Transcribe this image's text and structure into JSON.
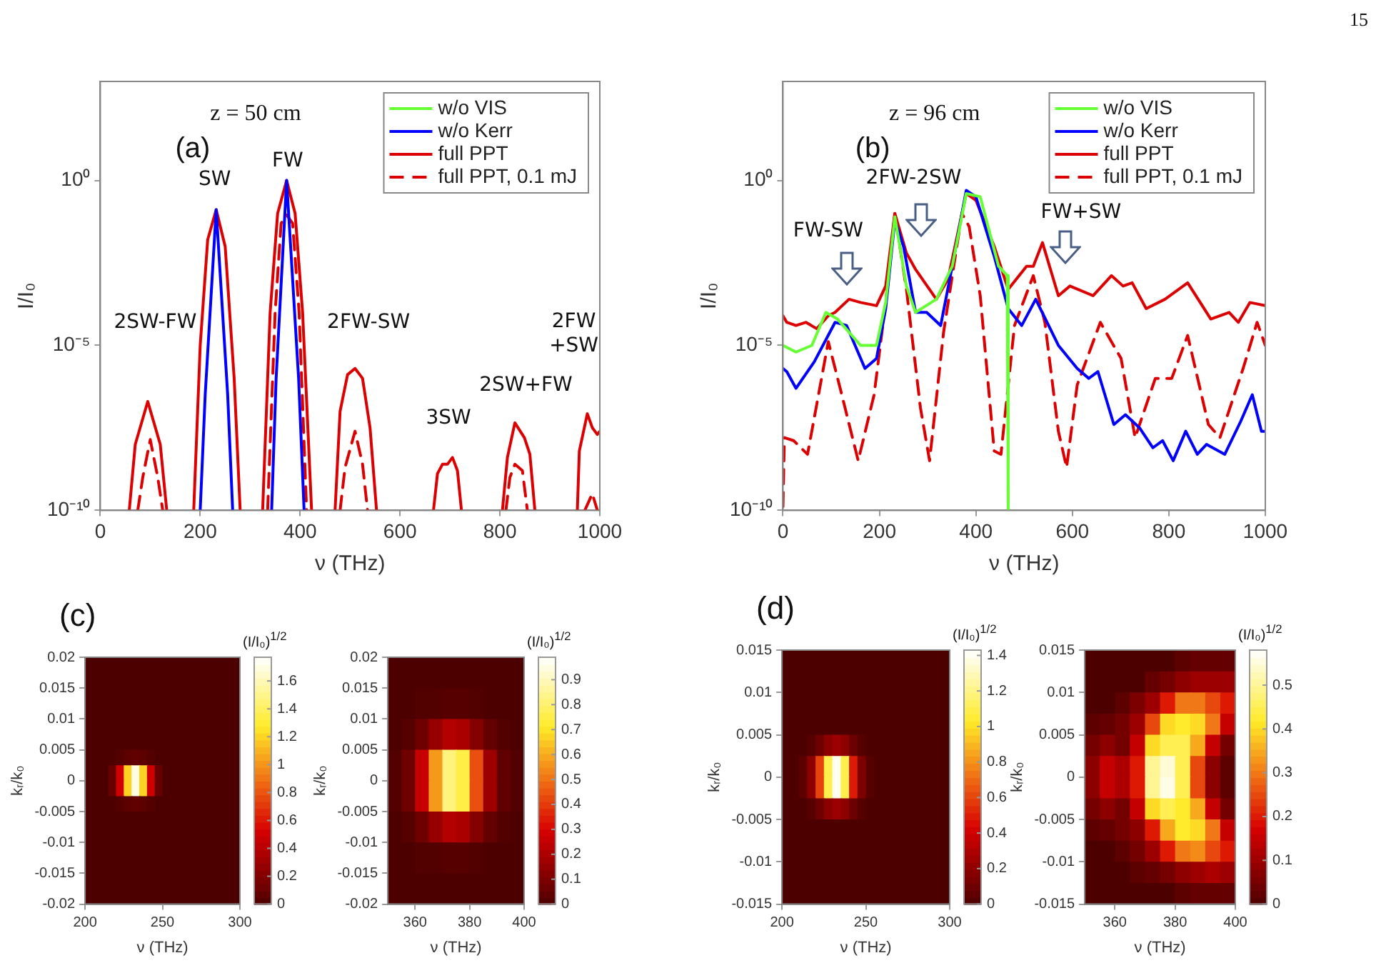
{
  "chart_data": [
    {
      "type": "line",
      "xlabel": "ν (THz)",
      "ylabel": "I/I₀",
      "log": "y",
      "xlim": [
        0,
        1000
      ],
      "xticks": [
        0,
        200,
        400,
        600,
        800,
        1000
      ],
      "ylim": [
        1e-10,
        1000
      ],
      "yticks": [
        {
          "value": 1e-10,
          "label": "10⁻¹⁰"
        },
        {
          "value": 1e-05,
          "label": "10⁻⁵"
        },
        {
          "value": 1,
          "label": "10⁰"
        }
      ],
      "legend": "top right",
      "annotations": [
        "(a)",
        "z = 50 cm",
        "15",
        "SW",
        "FW",
        "2SW-FW",
        "2FW-SW",
        "3SW",
        "2SW+FW",
        "2FW\n+SW"
      ],
      "series": [
        {
          "name": "w/o VIS",
          "color": "#66ff33"
        },
        {
          "name": "w/o Kerr",
          "color": "#0000ff",
          "x": [
            200,
            210,
            232,
            255,
            265,
            300,
            343,
            352,
            373,
            397,
            408
          ],
          "values": [
            1e-10,
            3.2e-07,
            0.13,
            3.2e-07,
            1e-10,
            null,
            1e-10,
            1e-06,
            1,
            1e-06,
            1e-10
          ]
        },
        {
          "name": "full PPT",
          "color": "#dd0000",
          "x": [
            58,
            70,
            95,
            120,
            133,
            160,
            187,
            200,
            215,
            232,
            250,
            268,
            280,
            300,
            325,
            340,
            355,
            373,
            390,
            405,
            423,
            445,
            470,
            480,
            495,
            510,
            525,
            540,
            553,
            600,
            667,
            675,
            685,
            695,
            705,
            715,
            723,
            770,
            805,
            815,
            830,
            849,
            860,
            870,
            900,
            955,
            959,
            975,
            985,
            995,
            1000
          ],
          "values": [
            1e-10,
            1e-08,
            2e-07,
            1e-08,
            1e-10,
            null,
            1e-10,
            1e-05,
            0.016,
            0.13,
            0.01,
            1e-06,
            1e-10,
            null,
            1e-10,
            0.0001,
            0.1,
            1,
            0.1,
            0.0001,
            1e-10,
            null,
            1e-10,
            1e-07,
            1.3e-06,
            2e-06,
            1e-06,
            3.2e-08,
            1e-10,
            null,
            1e-10,
            1.3e-09,
            2.5e-09,
            2.5e-09,
            4e-09,
            1.6e-09,
            1e-10,
            null,
            1e-10,
            4e-09,
            4.5e-08,
            1.6e-08,
            5e-09,
            1e-10,
            null,
            1e-10,
            6.3e-09,
            8.5e-08,
            3.2e-08,
            2e-08,
            2.5e-08
          ]
        },
        {
          "name": "full PPT, 0.1 mJ",
          "color": "#dd0000",
          "line_style": "dashed",
          "x": [
            75,
            85,
            100,
            115,
            125,
            160,
            335,
            350,
            362,
            373,
            385,
            398,
            413,
            445,
            480,
            490,
            510,
            525,
            535,
            600,
            812,
            820,
            830,
            845,
            855,
            900,
            970,
            985,
            995
          ],
          "values": [
            1e-10,
            1e-09,
            1.4e-08,
            1e-09,
            1e-10,
            null,
            1e-10,
            0.0001,
            0.05,
            0.09,
            0.05,
            0.0001,
            1e-10,
            null,
            1e-10,
            2e-09,
            2.5e-08,
            2.5e-09,
            1e-10,
            null,
            1e-10,
            1e-09,
            2.5e-09,
            1.6e-09,
            1e-10,
            null,
            1e-10,
            3.2e-10,
            1e-10
          ]
        }
      ]
    },
    {
      "type": "line",
      "xlabel": "ν (THz)",
      "ylabel": "I/I₀",
      "log": "y",
      "xlim": [
        0,
        1000
      ],
      "xticks": [
        0,
        200,
        400,
        600,
        800,
        1000
      ],
      "ylim": [
        1e-10,
        1000
      ],
      "yticks": [
        {
          "value": 1e-10,
          "label": "10⁻¹⁰"
        },
        {
          "value": 1e-05,
          "label": "10⁻⁵"
        },
        {
          "value": 1,
          "label": "10⁰"
        }
      ],
      "legend": "top right",
      "annotations": [
        "(b)",
        "z = 96 cm",
        "FW-SW",
        "2FW-2SW",
        "FW+SW"
      ],
      "series": [
        {
          "name": "w/o VIS",
          "color": "#66ff33",
          "x": [
            0,
            27,
            60,
            89,
            113,
            161,
            194,
            213,
            232,
            256,
            275,
            318,
            351,
            380,
            409,
            447,
            465,
            467
          ],
          "values": [
            1e-05,
            6.3e-06,
            1e-05,
            0.0001,
            6.3e-05,
            1e-05,
            1e-05,
            0.0002,
            0.079,
            0.00063,
            0.0001,
            0.00025,
            0.0025,
            0.4,
            0.32,
            0.0025,
            0.0013,
            1e-10
          ]
        },
        {
          "name": "w/o Kerr",
          "color": "#0000ff",
          "x": [
            0,
            8,
            27,
            65,
            108,
            132,
            170,
            194,
            213,
            232,
            250,
            275,
            298,
            327,
            351,
            380,
            400,
            438,
            467,
            495,
            524,
            571,
            610,
            634,
            653,
            686,
            710,
            739,
            767,
            787,
            809,
            835,
            859,
            878,
            916,
            949,
            973,
            992,
            1000
          ],
          "values": [
            2e-06,
            1.6e-06,
            5e-07,
            3.2e-06,
            5e-05,
            4e-05,
            2e-06,
            4e-06,
            0.00013,
            0.063,
            0.01,
            0.0001,
            0.0001,
            4e-05,
            0.0025,
            0.5,
            0.32,
            0.005,
            0.00013,
            4e-05,
            0.00025,
            1e-05,
            2e-06,
            1e-06,
            1.6e-06,
            4e-08,
            7.9e-08,
            3.2e-08,
            7.9e-09,
            1.3e-08,
            3.2e-09,
            2.5e-08,
            5e-09,
            1e-08,
            5e-09,
            5e-08,
            3.2e-07,
            2.5e-08,
            2.5e-08
          ]
        },
        {
          "name": "full PPT",
          "color": "#dd0000",
          "x": [
            0,
            8,
            27,
            48,
            70,
            94,
            108,
            137,
            161,
            194,
            213,
            232,
            256,
            275,
            318,
            342,
            380,
            400,
            438,
            467,
            505,
            519,
            538,
            571,
            595,
            643,
            681,
            705,
            724,
            753,
            792,
            839,
            887,
            925,
            944,
            968,
            1000
          ],
          "values": [
            7.9e-05,
            5e-05,
            4e-05,
            5e-05,
            3.2e-05,
            7.9e-05,
            0.0001,
            0.00025,
            0.0002,
            0.00016,
            0.00063,
            0.1,
            0.0063,
            0.002,
            0.00025,
            0.001,
            0.4,
            0.25,
            0.01,
            0.0005,
            0.0025,
            0.0025,
            0.013,
            0.00032,
            0.00063,
            0.00032,
            0.0013,
            0.00063,
            0.00079,
            0.00013,
            0.00025,
            0.00079,
            6.3e-05,
            0.0001,
            5e-05,
            0.0002,
            0.00016
          ]
        },
        {
          "name": "full PPT, 0.1 mJ",
          "color": "#dd0000",
          "line_style": "dashed",
          "x": [
            0,
            3,
            22,
            51,
            94,
            122,
            156,
            189,
            213,
            232,
            256,
            285,
            304,
            333,
            371,
            386,
            409,
            438,
            452,
            480,
            519,
            543,
            571,
            588,
            610,
            658,
            701,
            730,
            772,
            806,
            839,
            882,
            906,
            954,
            983,
            1000
          ],
          "values": [
            1.3e-10,
            1.6e-08,
            1.3e-08,
            5e-09,
            1.3e-05,
            3.2e-07,
            3.2e-09,
            3.2e-07,
            0.0002,
            0.1,
            0.0005,
            1.3e-07,
            3.2e-09,
            2.5e-05,
            0.1,
            0.04,
            0.00032,
            6.3e-09,
            5e-09,
            4e-05,
            0.0013,
            5e-05,
            2.5e-08,
            2e-09,
            6.3e-07,
            5e-05,
            4e-06,
            1.6e-08,
            1e-06,
            1e-06,
            2e-05,
            4e-08,
            1.6e-08,
            2e-06,
            5e-05,
            1e-05
          ]
        }
      ]
    },
    {
      "type": "heatmap",
      "annotations": [
        "(c)"
      ],
      "xlabel": "ν (THz)",
      "ylabel": "kᵣ/k₀",
      "clabel": "(I/I₀)$^{1/2}$",
      "xlim": [
        200,
        300
      ],
      "xticks": [
        200,
        250,
        300
      ],
      "ylim": [
        -0.02,
        0.02
      ],
      "yticks": [
        -0.02,
        -0.015,
        -0.01,
        -0.005,
        0,
        0.005,
        0.01,
        0.015,
        0.02
      ],
      "clim": [
        0,
        1.77
      ],
      "cticks": [
        0,
        0.2,
        0.4,
        0.6,
        0.8,
        1,
        1.2,
        1.4,
        1.6
      ],
      "x": [
        202.5,
        207.5,
        212.5,
        217.5,
        222.5,
        227.5,
        232.5,
        237.5,
        242.5,
        247.5,
        252.5,
        257.5,
        262.5,
        267.5,
        272.5,
        277.5,
        282.5,
        287.5,
        292.5,
        297.5
      ],
      "y": [
        0.01875,
        0.01625,
        0.01375,
        0.01125,
        0.00875,
        0.00625,
        0.00375,
        0.00125,
        -0.00125,
        -0.00375,
        -0.00625,
        -0.00875,
        -0.01125,
        -0.01375,
        -0.01625,
        -0.01875
      ],
      "cells": [
        [
          0,
          0,
          0,
          0,
          0,
          0,
          0,
          0,
          0,
          0,
          0,
          0,
          0,
          0,
          0,
          0,
          0,
          0,
          0,
          0
        ],
        [
          0,
          0,
          0,
          0,
          0,
          0,
          0,
          0,
          0,
          0,
          0,
          0,
          0,
          0,
          0,
          0,
          0,
          0,
          0,
          0
        ],
        [
          0,
          0,
          0,
          0,
          0,
          0,
          0,
          0,
          0,
          0,
          0,
          0,
          0,
          0,
          0,
          0,
          0,
          0,
          0,
          0
        ],
        [
          0,
          0,
          0,
          0,
          0,
          0,
          0,
          0,
          0,
          0,
          0,
          0,
          0,
          0,
          0,
          0,
          0,
          0,
          0,
          0
        ],
        [
          0,
          0,
          0,
          0,
          0,
          0,
          0,
          0,
          0,
          0,
          0,
          0,
          0,
          0,
          0,
          0,
          0,
          0,
          0,
          0
        ],
        [
          0,
          0,
          0,
          0,
          0,
          0,
          0,
          0,
          0,
          0,
          0,
          0,
          0,
          0,
          0,
          0,
          0,
          0,
          0,
          0
        ],
        [
          0,
          0,
          0,
          0,
          0.03,
          0.06,
          0.08,
          0.06,
          0.03,
          0,
          0,
          0,
          0,
          0,
          0,
          0,
          0,
          0,
          0,
          0
        ],
        [
          0,
          0,
          0,
          0.1,
          0.5,
          1.2,
          1.7,
          1.2,
          0.5,
          0.1,
          0,
          0,
          0,
          0,
          0,
          0,
          0,
          0,
          0,
          0
        ],
        [
          0,
          0,
          0,
          0.1,
          0.5,
          1.2,
          1.7,
          1.2,
          0.5,
          0.1,
          0,
          0,
          0,
          0,
          0,
          0,
          0,
          0,
          0,
          0
        ],
        [
          0,
          0,
          0,
          0,
          0.03,
          0.06,
          0.08,
          0.06,
          0.03,
          0,
          0,
          0,
          0,
          0,
          0,
          0,
          0,
          0,
          0,
          0
        ],
        [
          0,
          0,
          0,
          0,
          0,
          0,
          0,
          0,
          0,
          0,
          0,
          0,
          0,
          0,
          0,
          0,
          0,
          0,
          0,
          0
        ],
        [
          0,
          0,
          0,
          0,
          0,
          0,
          0,
          0,
          0,
          0,
          0,
          0,
          0,
          0,
          0,
          0,
          0,
          0,
          0,
          0
        ],
        [
          0,
          0,
          0,
          0,
          0,
          0,
          0,
          0,
          0,
          0,
          0,
          0,
          0,
          0,
          0,
          0,
          0,
          0,
          0,
          0
        ],
        [
          0,
          0,
          0,
          0,
          0,
          0,
          0,
          0,
          0,
          0,
          0,
          0,
          0,
          0,
          0,
          0,
          0,
          0,
          0,
          0
        ],
        [
          0,
          0,
          0,
          0,
          0,
          0,
          0,
          0,
          0,
          0,
          0,
          0,
          0,
          0,
          0,
          0,
          0,
          0,
          0,
          0
        ],
        [
          0,
          0,
          0,
          0,
          0,
          0,
          0,
          0,
          0,
          0,
          0,
          0,
          0,
          0,
          0,
          0,
          0,
          0,
          0,
          0
        ]
      ]
    },
    {
      "type": "heatmap",
      "xlabel": "ν (THz)",
      "ylabel": "kᵣ/k₀",
      "clabel": "(I/I₀)$^{1/2}$",
      "xlim": [
        350,
        400
      ],
      "xticks": [
        360,
        380,
        400
      ],
      "ylim": [
        -0.02,
        0.02
      ],
      "yticks": [
        -0.02,
        -0.015,
        -0.01,
        -0.005,
        0,
        0.005,
        0.01,
        0.015,
        0.02
      ],
      "clim": [
        0,
        0.99
      ],
      "cticks": [
        0,
        0.1,
        0.2,
        0.3,
        0.4,
        0.5,
        0.6,
        0.7,
        0.8,
        0.9
      ],
      "x": [
        352.5,
        357.5,
        362.5,
        367.5,
        372.5,
        377.5,
        382.5,
        387.5,
        392.5,
        397.5
      ],
      "y": [
        0.0175,
        0.0125,
        0.0075,
        0.0025,
        -0.0025,
        -0.0075,
        -0.0125,
        -0.0175
      ],
      "cells": [
        [
          0,
          0,
          0,
          0,
          0,
          0,
          0,
          0,
          0,
          0
        ],
        [
          0,
          0,
          0.01,
          0.01,
          0.02,
          0.02,
          0.01,
          0,
          0,
          0
        ],
        [
          0,
          0.02,
          0.07,
          0.16,
          0.22,
          0.2,
          0.12,
          0.05,
          0.01,
          0
        ],
        [
          0.01,
          0.07,
          0.26,
          0.57,
          0.82,
          0.75,
          0.44,
          0.17,
          0.04,
          0.01
        ],
        [
          0.01,
          0.07,
          0.26,
          0.57,
          0.82,
          0.75,
          0.44,
          0.17,
          0.04,
          0.01
        ],
        [
          0,
          0.02,
          0.07,
          0.16,
          0.22,
          0.2,
          0.12,
          0.05,
          0.01,
          0
        ],
        [
          0,
          0,
          0.01,
          0.01,
          0.02,
          0.02,
          0.01,
          0,
          0,
          0
        ],
        [
          0,
          0,
          0,
          0,
          0,
          0,
          0,
          0,
          0,
          0
        ]
      ]
    },
    {
      "type": "heatmap",
      "annotations": [
        "(d)"
      ],
      "xlabel": "ν (THz)",
      "ylabel": "kᵣ/k₀",
      "clabel": "(I/I₀)$^{1/2}$",
      "xlim": [
        200,
        300
      ],
      "xticks": [
        200,
        250,
        300
      ],
      "ylim": [
        -0.015,
        0.015
      ],
      "yticks": [
        -0.015,
        -0.01,
        -0.005,
        0,
        0.005,
        0.01,
        0.015
      ],
      "clim": [
        0,
        1.43
      ],
      "cticks": [
        0,
        0.2,
        0.4,
        0.6,
        0.8,
        1,
        1.2,
        1.4
      ],
      "x": [
        202.5,
        207.5,
        212.5,
        217.5,
        222.5,
        227.5,
        232.5,
        237.5,
        242.5,
        247.5,
        252.5,
        257.5,
        262.5,
        267.5,
        272.5,
        277.5,
        282.5,
        287.5,
        292.5,
        297.5
      ],
      "y": [
        0.01375,
        0.01125,
        0.00875,
        0.00625,
        0.00375,
        0.00125,
        -0.00125,
        -0.00375,
        -0.00625,
        -0.00875,
        -0.01125,
        -0.01375
      ],
      "cells": [
        [
          0,
          0,
          0,
          0,
          0,
          0,
          0,
          0,
          0,
          0,
          0,
          0,
          0,
          0,
          0,
          0,
          0,
          0,
          0,
          0
        ],
        [
          0,
          0,
          0,
          0,
          0,
          0,
          0,
          0,
          0,
          0,
          0,
          0,
          0,
          0,
          0,
          0,
          0,
          0,
          0,
          0
        ],
        [
          0,
          0,
          0,
          0,
          0,
          0,
          0,
          0,
          0,
          0,
          0,
          0,
          0,
          0,
          0,
          0,
          0,
          0,
          0,
          0
        ],
        [
          0,
          0,
          0,
          0,
          0,
          0,
          0,
          0,
          0,
          0,
          0,
          0,
          0,
          0,
          0,
          0,
          0,
          0,
          0,
          0
        ],
        [
          0,
          0,
          0,
          0.03,
          0.1,
          0.2,
          0.25,
          0.2,
          0.1,
          0.03,
          0,
          0,
          0,
          0,
          0,
          0,
          0,
          0,
          0,
          0
        ],
        [
          0,
          0,
          0.05,
          0.2,
          0.6,
          1.1,
          1.4,
          1.1,
          0.5,
          0.15,
          0.03,
          0,
          0,
          0,
          0,
          0,
          0,
          0,
          0,
          0
        ],
        [
          0,
          0,
          0.05,
          0.2,
          0.6,
          1.1,
          1.4,
          1.1,
          0.5,
          0.15,
          0.03,
          0,
          0,
          0,
          0,
          0,
          0,
          0,
          0,
          0
        ],
        [
          0,
          0,
          0,
          0.03,
          0.1,
          0.2,
          0.25,
          0.2,
          0.1,
          0.03,
          0,
          0,
          0,
          0,
          0,
          0,
          0,
          0,
          0,
          0
        ],
        [
          0,
          0,
          0,
          0,
          0,
          0,
          0,
          0,
          0,
          0,
          0,
          0,
          0,
          0,
          0,
          0,
          0,
          0,
          0,
          0
        ],
        [
          0,
          0,
          0,
          0,
          0,
          0,
          0,
          0,
          0,
          0,
          0,
          0,
          0,
          0,
          0,
          0,
          0,
          0,
          0,
          0
        ],
        [
          0,
          0,
          0,
          0,
          0,
          0,
          0,
          0,
          0,
          0,
          0,
          0,
          0,
          0,
          0,
          0,
          0,
          0,
          0,
          0
        ],
        [
          0,
          0,
          0,
          0,
          0,
          0,
          0,
          0,
          0,
          0,
          0,
          0,
          0,
          0,
          0,
          0,
          0,
          0,
          0,
          0
        ]
      ]
    },
    {
      "type": "heatmap",
      "xlabel": "ν (THz)",
      "ylabel": "kᵣ/k₀",
      "clabel": "(I/I₀)$^{1/2}$",
      "xlim": [
        350,
        400
      ],
      "xticks": [
        360,
        380,
        400
      ],
      "ylim": [
        -0.015,
        0.015
      ],
      "yticks": [
        -0.015,
        -0.01,
        -0.005,
        0,
        0.005,
        0.01,
        0.015
      ],
      "clim": [
        0,
        0.58
      ],
      "cticks": [
        0,
        0.1,
        0.2,
        0.3,
        0.4,
        0.5
      ],
      "x": [
        352.5,
        357.5,
        362.5,
        367.5,
        372.5,
        377.5,
        382.5,
        387.5,
        392.5,
        397.5
      ],
      "y": [
        0.01375,
        0.01125,
        0.00875,
        0.00625,
        0.00375,
        0.00125,
        -0.00125,
        -0.00375,
        -0.00625,
        -0.00875,
        -0.01125,
        -0.01375
      ],
      "cells": [
        [
          0,
          0,
          0,
          0,
          0,
          0,
          0.02,
          0.03,
          0.03,
          0.03
        ],
        [
          0,
          0,
          0,
          0,
          0.03,
          0.05,
          0.08,
          0.1,
          0.1,
          0.1
        ],
        [
          0,
          0,
          0.02,
          0.06,
          0.1,
          0.2,
          0.3,
          0.3,
          0.25,
          0.2
        ],
        [
          0.02,
          0.03,
          0.05,
          0.1,
          0.25,
          0.4,
          0.42,
          0.4,
          0.3,
          0.15
        ],
        [
          0.05,
          0.08,
          0.05,
          0.15,
          0.4,
          0.45,
          0.45,
          0.35,
          0.15,
          0.05
        ],
        [
          0.08,
          0.15,
          0.12,
          0.2,
          0.5,
          0.55,
          0.45,
          0.25,
          0.08,
          0.02
        ],
        [
          0.08,
          0.15,
          0.12,
          0.2,
          0.5,
          0.56,
          0.45,
          0.25,
          0.08,
          0.02
        ],
        [
          0.05,
          0.08,
          0.05,
          0.15,
          0.4,
          0.45,
          0.42,
          0.35,
          0.15,
          0.05
        ],
        [
          0.02,
          0.03,
          0.05,
          0.08,
          0.2,
          0.35,
          0.42,
          0.4,
          0.3,
          0.15
        ],
        [
          0,
          0,
          0.02,
          0.05,
          0.1,
          0.2,
          0.3,
          0.32,
          0.25,
          0.2
        ],
        [
          0,
          0,
          0,
          0.02,
          0.03,
          0.05,
          0.08,
          0.1,
          0.12,
          0.1
        ],
        [
          0,
          0,
          0,
          0,
          0,
          0,
          0.02,
          0.03,
          0.03,
          0.03
        ]
      ]
    }
  ]
}
